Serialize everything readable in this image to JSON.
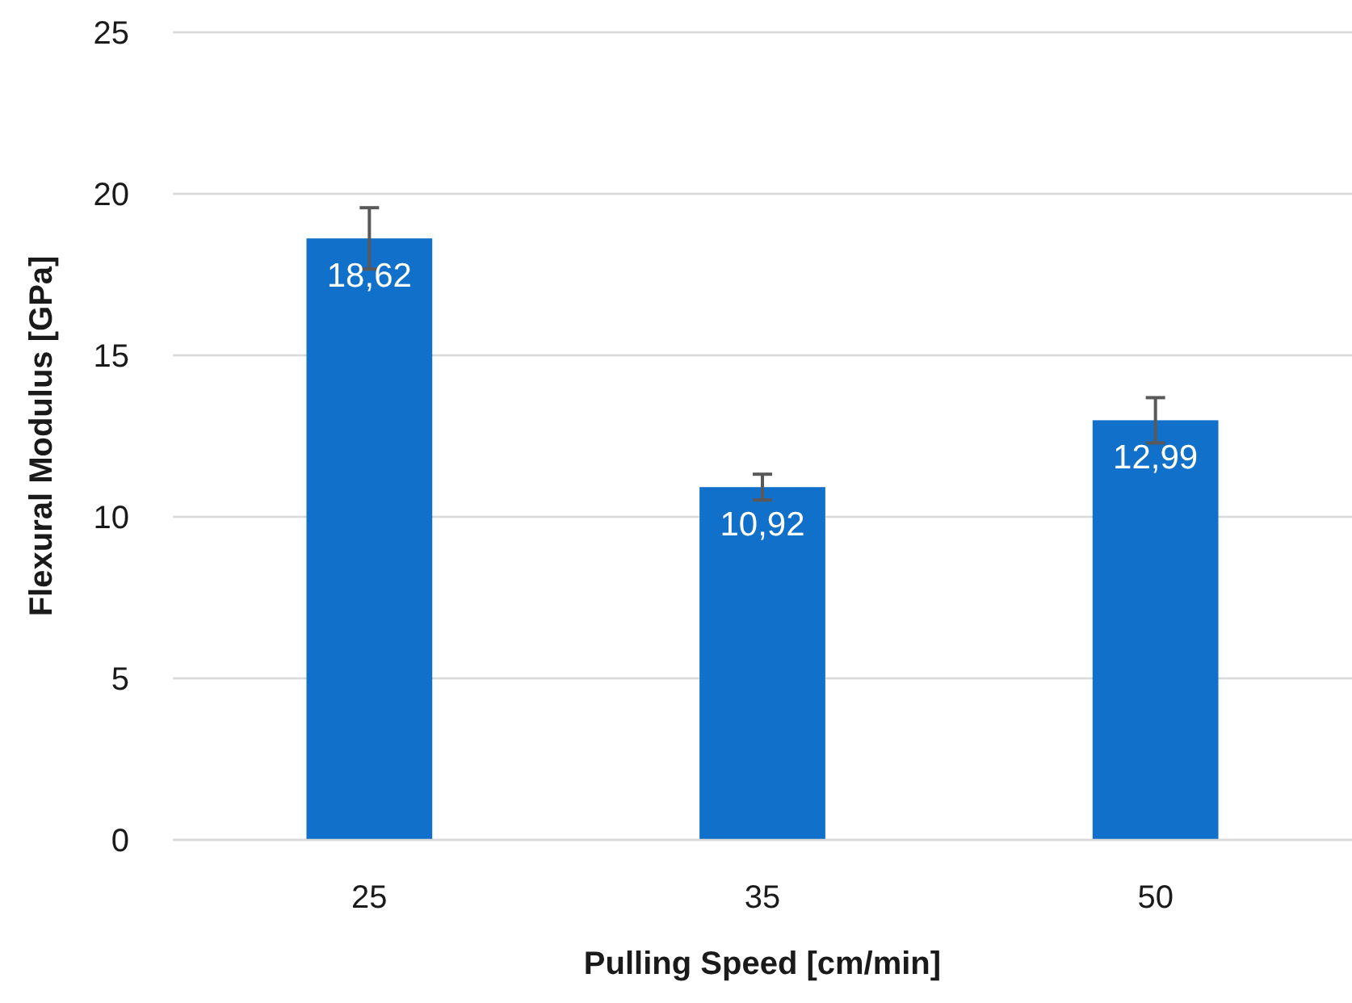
{
  "chart_data": {
    "type": "bar",
    "xlabel": "Pulling Speed [cm/min]",
    "ylabel": "Flexural Modulus [GPa]",
    "categories": [
      "25",
      "35",
      "50"
    ],
    "values": [
      18.62,
      10.92,
      12.99
    ],
    "value_labels": [
      "18,62",
      "10,92",
      "12,99"
    ],
    "errors": [
      0.95,
      0.4,
      0.7
    ],
    "color": "#1170c9",
    "ylim": [
      0,
      25
    ],
    "yticks": [
      0,
      5,
      10,
      15,
      20,
      25
    ],
    "grid": "y"
  }
}
